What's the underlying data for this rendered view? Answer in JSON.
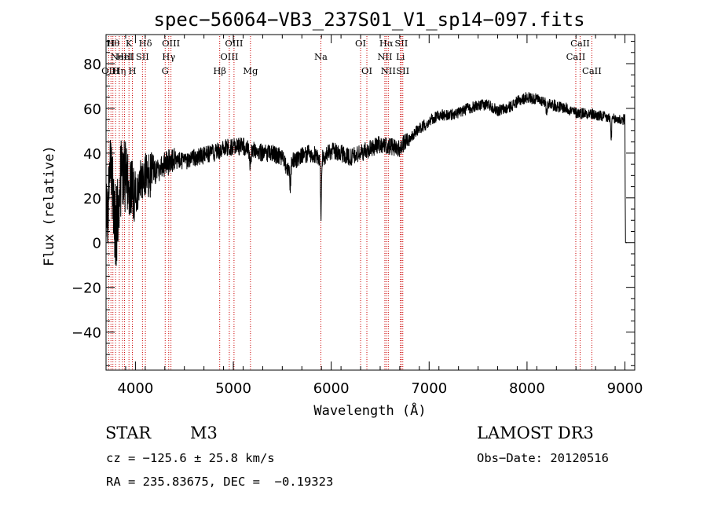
{
  "chart_data": {
    "type": "line",
    "title": "spec−56064−VB3_237S01_V1_sp14−097.fits",
    "xlabel": "Wavelength (Å)",
    "ylabel": "Flux (relative)",
    "xlim": [
      3700,
      9100
    ],
    "ylim": [
      -57,
      93
    ],
    "x_ticks": [
      4000,
      5000,
      6000,
      7000,
      8000,
      9000
    ],
    "x_tick_labels": [
      "4000",
      "5000",
      "6000",
      "7000",
      "8000",
      "9000"
    ],
    "y_ticks": [
      -40,
      -20,
      0,
      20,
      40,
      60,
      80
    ],
    "y_tick_labels": [
      "−40",
      "−20",
      "0",
      "20",
      "40",
      "60",
      "80"
    ],
    "spectrum_color": "#000000",
    "line_color": "#cc0000",
    "spectrum_anchors": [
      [
        3700,
        10
      ],
      [
        3740,
        30
      ],
      [
        3780,
        15
      ],
      [
        3800,
        5
      ],
      [
        3830,
        20
      ],
      [
        3860,
        35
      ],
      [
        3900,
        30
      ],
      [
        3950,
        25
      ],
      [
        4000,
        20
      ],
      [
        4050,
        28
      ],
      [
        4100,
        30
      ],
      [
        4150,
        30
      ],
      [
        4200,
        32
      ],
      [
        4250,
        33
      ],
      [
        4300,
        35
      ],
      [
        4400,
        37
      ],
      [
        4500,
        36
      ],
      [
        4600,
        38
      ],
      [
        4700,
        39
      ],
      [
        4800,
        40
      ],
      [
        4900,
        42
      ],
      [
        5000,
        43
      ],
      [
        5100,
        43
      ],
      [
        5200,
        42
      ],
      [
        5300,
        40
      ],
      [
        5400,
        40
      ],
      [
        5500,
        38
      ],
      [
        5550,
        33
      ],
      [
        5600,
        36
      ],
      [
        5700,
        39
      ],
      [
        5800,
        40
      ],
      [
        5900,
        37
      ],
      [
        5950,
        39
      ],
      [
        6000,
        41
      ],
      [
        6100,
        40
      ],
      [
        6200,
        38
      ],
      [
        6300,
        40
      ],
      [
        6400,
        42
      ],
      [
        6500,
        44
      ],
      [
        6600,
        43
      ],
      [
        6700,
        42
      ],
      [
        6800,
        47
      ],
      [
        6900,
        51
      ],
      [
        7000,
        54
      ],
      [
        7100,
        57
      ],
      [
        7200,
        57
      ],
      [
        7300,
        58
      ],
      [
        7400,
        60
      ],
      [
        7500,
        61
      ],
      [
        7600,
        62
      ],
      [
        7700,
        59
      ],
      [
        7800,
        60
      ],
      [
        7900,
        63
      ],
      [
        8000,
        65
      ],
      [
        8100,
        64
      ],
      [
        8200,
        63
      ],
      [
        8300,
        61
      ],
      [
        8400,
        60
      ],
      [
        8500,
        58
      ],
      [
        8600,
        58
      ],
      [
        8700,
        57
      ],
      [
        8800,
        56
      ],
      [
        8900,
        55
      ],
      [
        9000,
        55
      ]
    ],
    "dips": [
      {
        "center": 5170,
        "width": 10,
        "depth": 6
      },
      {
        "center": 5895,
        "width": 4,
        "depth": 28
      },
      {
        "center": 5580,
        "width": 6,
        "depth": 10
      },
      {
        "center": 8200,
        "width": 8,
        "depth": 4
      },
      {
        "center": 8860,
        "width": 5,
        "depth": 8
      }
    ],
    "lines": [
      {
        "wavelength": 3727,
        "label": "OII",
        "row": 2
      },
      {
        "wavelength": 3750,
        "label": "H",
        "row": 0
      },
      {
        "wavelength": 3770,
        "label": "Hθ",
        "row": 0
      },
      {
        "wavelength": 3797,
        "label": "H",
        "row": 2
      },
      {
        "wavelength": 3835,
        "label": "Hη",
        "row": 2
      },
      {
        "wavelength": 3868,
        "label": "NeIII",
        "row": 1
      },
      {
        "wavelength": 3889,
        "label": "HeI",
        "row": 1
      },
      {
        "wavelength": 3934,
        "label": "K",
        "row": 0
      },
      {
        "wavelength": 3969,
        "label": "H",
        "row": 2
      },
      {
        "wavelength": 4072,
        "label": "SII",
        "row": 1
      },
      {
        "wavelength": 4102,
        "label": "Hδ",
        "row": 0
      },
      {
        "wavelength": 4304,
        "label": "G",
        "row": 2
      },
      {
        "wavelength": 4340,
        "label": "Hγ",
        "row": 1
      },
      {
        "wavelength": 4363,
        "label": "OIII",
        "row": 0
      },
      {
        "wavelength": 4861,
        "label": "Hβ",
        "row": 2
      },
      {
        "wavelength": 4959,
        "label": "OIII",
        "row": 1
      },
      {
        "wavelength": 5007,
        "label": "OIII",
        "row": 0
      },
      {
        "wavelength": 5175,
        "label": "Mg",
        "row": 2
      },
      {
        "wavelength": 5894,
        "label": "Na",
        "row": 1
      },
      {
        "wavelength": 6300,
        "label": "OI",
        "row": 0
      },
      {
        "wavelength": 6364,
        "label": "OI",
        "row": 2
      },
      {
        "wavelength": 6548,
        "label": "NII",
        "row": 1
      },
      {
        "wavelength": 6563,
        "label": "Hα",
        "row": 0
      },
      {
        "wavelength": 6583,
        "label": "NII",
        "row": 2
      },
      {
        "wavelength": 6707,
        "label": "Li",
        "row": 1
      },
      {
        "wavelength": 6716,
        "label": "SII",
        "row": 0
      },
      {
        "wavelength": 6731,
        "label": "SII",
        "row": 2
      },
      {
        "wavelength": 8498,
        "label": "CaII",
        "row": 1
      },
      {
        "wavelength": 8542,
        "label": "CaII",
        "row": 0
      },
      {
        "wavelength": 8662,
        "label": "CaII",
        "row": 2
      }
    ]
  },
  "info": {
    "class": "STAR",
    "subclass": "M3",
    "survey": "LAMOST DR3",
    "redshift": "cz = −125.6 ± 25.8 km/s",
    "obs_date": "Obs−Date: 20120516",
    "coords": "RA = 235.83675, DEC =  −0.19323"
  }
}
